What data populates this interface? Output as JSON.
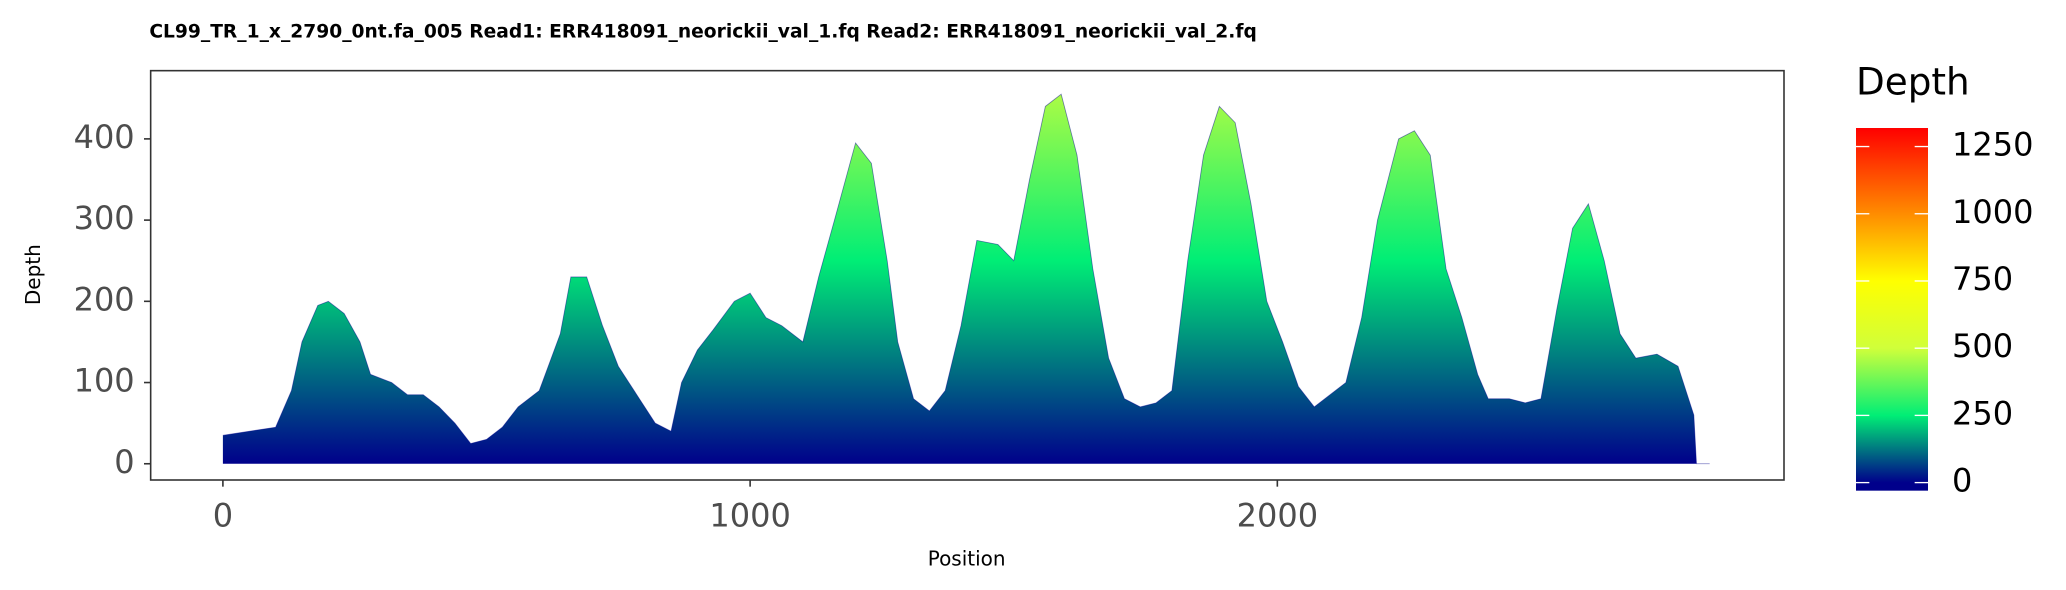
{
  "chart_data": {
    "type": "area",
    "title": "CL99_TR_1_x_2790_0nt.fa_005   Read1: ERR418091_neorickii_val_1.fq   Read2: ERR418091_neorickii_val_2.fq",
    "x_label": "Position",
    "y_label": "Depth",
    "x": [
      0,
      50,
      100,
      130,
      150,
      180,
      200,
      230,
      260,
      280,
      320,
      350,
      380,
      410,
      440,
      470,
      500,
      530,
      560,
      600,
      640,
      660,
      690,
      720,
      750,
      790,
      820,
      850,
      870,
      900,
      930,
      970,
      1000,
      1030,
      1060,
      1100,
      1130,
      1160,
      1200,
      1230,
      1260,
      1280,
      1310,
      1340,
      1370,
      1400,
      1430,
      1470,
      1500,
      1530,
      1560,
      1590,
      1620,
      1650,
      1680,
      1710,
      1740,
      1770,
      1800,
      1830,
      1860,
      1890,
      1920,
      1950,
      1980,
      2010,
      2040,
      2070,
      2100,
      2130,
      2160,
      2190,
      2230,
      2260,
      2290,
      2320,
      2350,
      2380,
      2400,
      2440,
      2470,
      2500,
      2530,
      2560,
      2590,
      2620,
      2650,
      2680,
      2720,
      2760,
      2790,
      2795,
      2820
    ],
    "values": [
      35,
      40,
      45,
      90,
      150,
      195,
      200,
      185,
      150,
      110,
      100,
      85,
      85,
      70,
      50,
      25,
      30,
      45,
      70,
      90,
      160,
      230,
      230,
      170,
      120,
      80,
      50,
      40,
      100,
      140,
      165,
      200,
      210,
      180,
      170,
      150,
      230,
      300,
      395,
      370,
      250,
      150,
      80,
      65,
      90,
      170,
      275,
      270,
      250,
      350,
      440,
      455,
      380,
      240,
      130,
      80,
      70,
      75,
      90,
      250,
      380,
      440,
      420,
      320,
      200,
      150,
      95,
      70,
      85,
      100,
      180,
      300,
      400,
      410,
      380,
      240,
      180,
      110,
      80,
      80,
      75,
      80,
      190,
      290,
      320,
      250,
      160,
      130,
      135,
      120,
      60,
      0,
      0
    ],
    "xlim": [
      -137,
      2961
    ],
    "ylim": [
      -20,
      484
    ],
    "xticks": [
      0,
      1000,
      2000
    ],
    "yticks": [
      0,
      100,
      200,
      300,
      400
    ],
    "legend": {
      "title": "Depth",
      "lim": [
        -30,
        1319
      ],
      "ticks": [
        0,
        250,
        500,
        750,
        1000,
        1250
      ]
    },
    "colorscale": [
      {
        "value": 0,
        "color": "#00008b"
      },
      {
        "value": 250,
        "color": "#00ee76"
      },
      {
        "value": 500,
        "color": "#d0ff3a"
      },
      {
        "value": 750,
        "color": "#ffff00"
      },
      {
        "value": 1000,
        "color": "#ff8c00"
      },
      {
        "value": 1319,
        "color": "#ff0000"
      }
    ]
  }
}
